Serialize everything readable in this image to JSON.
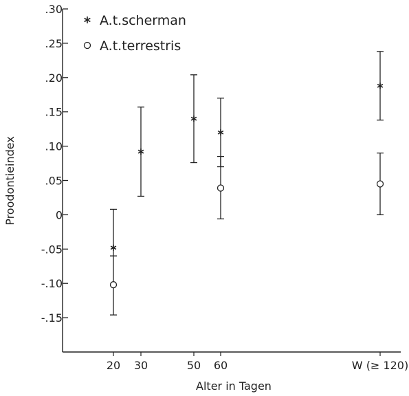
{
  "chart_data": {
    "type": "scatter",
    "title": "",
    "xlabel": "Alter in Tagen",
    "ylabel": "Proodontieindex",
    "x_categories": [
      "20",
      "30",
      "50",
      "60",
      "W (≥ 120)"
    ],
    "y_ticks": [
      {
        "value": 0.3,
        "label": ".30"
      },
      {
        "value": 0.25,
        "label": ".25"
      },
      {
        "value": 0.2,
        "label": ".20"
      },
      {
        "value": 0.15,
        "label": ".15"
      },
      {
        "value": 0.1,
        "label": ".10"
      },
      {
        "value": 0.05,
        "label": ".05"
      },
      {
        "value": 0.0,
        "label": "0"
      },
      {
        "value": -0.05,
        "label": "-.05"
      },
      {
        "value": -0.1,
        "label": "-.10"
      },
      {
        "value": -0.15,
        "label": "-.15"
      }
    ],
    "ylim": [
      -0.2,
      0.3
    ],
    "grid": false,
    "legend_position": "top-left",
    "series": [
      {
        "name": "A.t.scherman",
        "marker": "star",
        "points": [
          {
            "x": "20",
            "y": -0.048,
            "lower": -0.06,
            "upper": 0.008
          },
          {
            "x": "30",
            "y": 0.092,
            "lower": 0.027,
            "upper": 0.157
          },
          {
            "x": "50",
            "y": 0.14,
            "lower": 0.076,
            "upper": 0.204
          },
          {
            "x": "60",
            "y": 0.12,
            "lower": 0.07,
            "upper": 0.17
          },
          {
            "x": "W (≥ 120)",
            "y": 0.188,
            "lower": 0.138,
            "upper": 0.238
          }
        ]
      },
      {
        "name": "A.t.terrestris",
        "marker": "circle",
        "points": [
          {
            "x": "20",
            "y": -0.102,
            "lower": -0.146,
            "upper": -0.06
          },
          {
            "x": "60",
            "y": 0.039,
            "lower": -0.006,
            "upper": 0.085
          },
          {
            "x": "W (≥ 120)",
            "y": 0.045,
            "lower": 0.0,
            "upper": 0.09
          }
        ]
      }
    ]
  }
}
